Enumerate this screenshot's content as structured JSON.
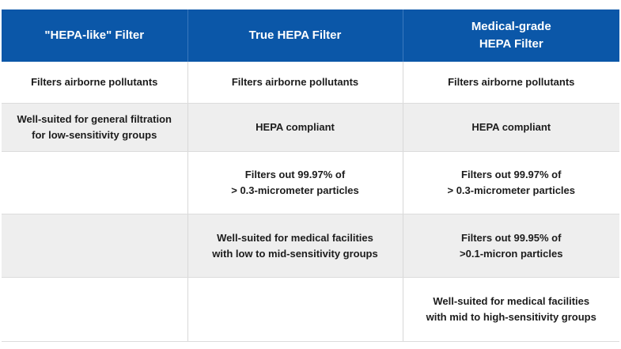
{
  "table": {
    "headers": [
      "\"HEPA-like\" Filter",
      "True HEPA Filter",
      "Medical-grade\nHEPA Filter"
    ],
    "rows": [
      [
        "Filters airborne pollutants",
        "Filters airborne pollutants",
        "Filters airborne pollutants"
      ],
      [
        "Well-suited for general filtration\nfor low-sensitivity groups",
        "HEPA compliant",
        "HEPA compliant"
      ],
      [
        "",
        "Filters out 99.97% of\n> 0.3-micrometer particles",
        "Filters out 99.97% of\n> 0.3-micrometer particles"
      ],
      [
        "",
        "Well-suited for medical facilities\nwith low to mid-sensitivity groups",
        "Filters out 99.95% of\n>0.1-micron particles"
      ],
      [
        "",
        "",
        "Well-suited for medical facilities\nwith mid to high-sensitivity groups"
      ]
    ]
  },
  "colors": {
    "header_bg": "#0b57a8",
    "header_text": "#ffffff",
    "stripe": "#eeeeee"
  }
}
